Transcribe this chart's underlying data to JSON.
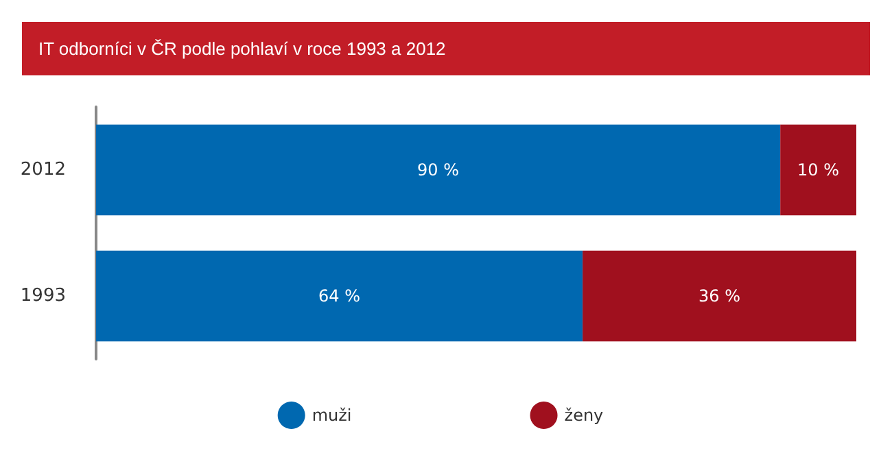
{
  "chart_data": {
    "type": "bar",
    "orientation": "horizontal",
    "stacked": true,
    "title": "IT odborníci v ČR podle pohlaví v roce 1993 a 2012",
    "categories": [
      "2012",
      "1993"
    ],
    "series": [
      {
        "name": "muži",
        "color": "#0068b0",
        "values": [
          90,
          64
        ],
        "value_labels": [
          "90 %",
          "64 %"
        ]
      },
      {
        "name": "ženy",
        "color": "#a0101e",
        "values": [
          10,
          36
        ],
        "value_labels": [
          "10 %",
          "36 %"
        ]
      }
    ],
    "xlim": [
      0,
      100
    ],
    "tick_labels": "y",
    "grid": false,
    "legend": "bottom"
  }
}
